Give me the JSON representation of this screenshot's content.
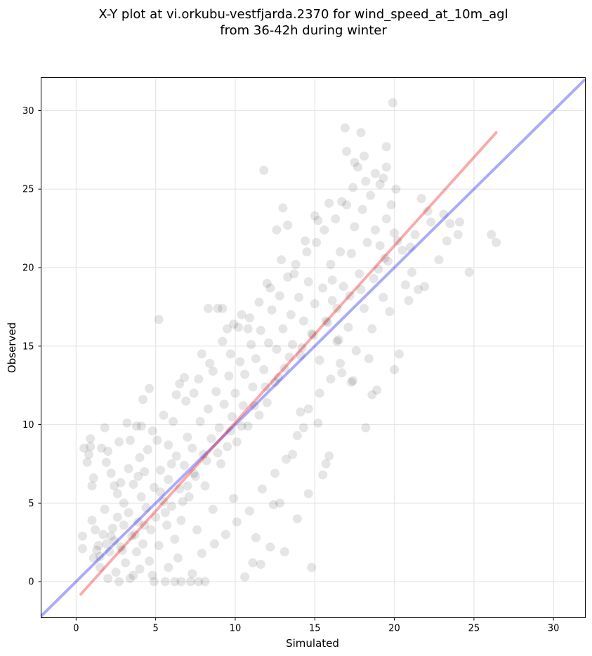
{
  "chart_data": {
    "type": "scatter",
    "title": "X-Y plot at vi.orkubu-vestfjarda.2370 for wind_speed_at_10m_agl",
    "subtitle": "from 36-42h during winter",
    "xlabel": "Simulated",
    "ylabel": "Observed",
    "xlim": [
      -2.2,
      32
    ],
    "ylim": [
      -2.3,
      32.1
    ],
    "x_ticks": [
      "0",
      "5",
      "10",
      "15",
      "20",
      "25",
      "30"
    ],
    "y_ticks": [
      "0",
      "5",
      "10",
      "15",
      "20",
      "25",
      "30"
    ],
    "grid": true,
    "point_color": "#000000",
    "identity_line": {
      "color": "#0000ee",
      "x": [
        -2.2,
        32
      ],
      "y": [
        -2.2,
        32
      ]
    },
    "fit_line": {
      "color": "#ee0000",
      "x": [
        0.3,
        26.4
      ],
      "y": [
        -0.8,
        28.6
      ]
    },
    "series": [
      {
        "points": [
          [
            0.4,
            2.9
          ],
          [
            0.4,
            2.1
          ],
          [
            0.5,
            8.5
          ],
          [
            0.7,
            7.6
          ],
          [
            0.8,
            8.1
          ],
          [
            0.9,
            8.6
          ],
          [
            0.9,
            9.1
          ],
          [
            1.0,
            6.1
          ],
          [
            1.1,
            6.6
          ],
          [
            1.0,
            3.9
          ],
          [
            1.2,
            3.3
          ],
          [
            1.3,
            2.0
          ],
          [
            1.5,
            1.6
          ],
          [
            1.6,
            8.5
          ],
          [
            1.8,
            9.8
          ],
          [
            1.9,
            7.6
          ],
          [
            2.0,
            8.3
          ],
          [
            2.2,
            6.9
          ],
          [
            2.4,
            6.1
          ],
          [
            2.5,
            0.6
          ],
          [
            2.7,
            8.9
          ],
          [
            2.8,
            6.3
          ],
          [
            3.0,
            5.0
          ],
          [
            3.2,
            10.1
          ],
          [
            3.4,
            9.0
          ],
          [
            3.6,
            6.2
          ],
          [
            3.8,
            9.9
          ],
          [
            3.9,
            6.7
          ],
          [
            4.1,
            9.9
          ],
          [
            4.2,
            11.6
          ],
          [
            4.3,
            7.0
          ],
          [
            4.5,
            8.4
          ],
          [
            4.6,
            12.3
          ],
          [
            4.8,
            9.6
          ],
          [
            4.9,
            0.0
          ],
          [
            5.2,
            16.7
          ],
          [
            5.3,
            5.7
          ],
          [
            5.5,
            10.6
          ],
          [
            5.6,
            0.0
          ],
          [
            5.8,
            8.7
          ],
          [
            6.0,
            7.5
          ],
          [
            6.2,
            0.0
          ],
          [
            6.3,
            11.9
          ],
          [
            6.5,
            12.6
          ],
          [
            6.6,
            0.0
          ],
          [
            6.8,
            13.0
          ],
          [
            7.0,
            6.1
          ],
          [
            7.2,
            0.0
          ],
          [
            7.4,
            12.0
          ],
          [
            7.7,
            0.0
          ],
          [
            7.9,
            14.5
          ],
          [
            8.1,
            0.0
          ],
          [
            8.3,
            17.4
          ],
          [
            8.6,
            13.4
          ],
          [
            8.9,
            17.4
          ],
          [
            9.2,
            17.4
          ],
          [
            9.5,
            16.1
          ],
          [
            9.7,
            14.5
          ],
          [
            9.9,
            5.3
          ],
          [
            10.2,
            16.2
          ],
          [
            10.4,
            17.0
          ],
          [
            10.6,
            0.3
          ],
          [
            10.9,
            16.8
          ],
          [
            11.1,
            1.2
          ],
          [
            11.3,
            2.8
          ],
          [
            11.6,
            1.1
          ],
          [
            11.8,
            26.2
          ],
          [
            12.0,
            19.0
          ],
          [
            12.2,
            2.2
          ],
          [
            12.4,
            4.9
          ],
          [
            12.6,
            22.4
          ],
          [
            12.8,
            5.0
          ],
          [
            13.0,
            23.8
          ],
          [
            13.1,
            1.9
          ],
          [
            13.3,
            22.7
          ],
          [
            13.6,
            8.1
          ],
          [
            13.9,
            4.0
          ],
          [
            14.1,
            10.8
          ],
          [
            14.3,
            9.8
          ],
          [
            14.6,
            5.6
          ],
          [
            14.8,
            0.9
          ],
          [
            15.0,
            23.3
          ],
          [
            15.2,
            10.1
          ],
          [
            15.5,
            6.8
          ],
          [
            15.7,
            7.5
          ],
          [
            15.9,
            8.0
          ],
          [
            16.1,
            19.2
          ],
          [
            16.4,
            15.3
          ],
          [
            16.6,
            13.9
          ],
          [
            16.9,
            28.9
          ],
          [
            17.0,
            27.4
          ],
          [
            17.3,
            12.7
          ],
          [
            17.5,
            26.7
          ],
          [
            17.7,
            26.4
          ],
          [
            17.9,
            28.6
          ],
          [
            18.1,
            27.1
          ],
          [
            18.2,
            9.8
          ],
          [
            18.4,
            14.2
          ],
          [
            18.6,
            11.9
          ],
          [
            18.9,
            12.2
          ],
          [
            19.1,
            21.4
          ],
          [
            19.3,
            25.7
          ],
          [
            19.5,
            27.7
          ],
          [
            19.7,
            17.2
          ],
          [
            19.9,
            30.5
          ],
          [
            20.0,
            13.5
          ],
          [
            20.1,
            25.0
          ],
          [
            20.3,
            14.5
          ],
          [
            20.5,
            21.1
          ],
          [
            20.7,
            18.9
          ],
          [
            20.9,
            17.9
          ],
          [
            21.1,
            19.7
          ],
          [
            21.3,
            22.1
          ],
          [
            21.5,
            18.6
          ],
          [
            21.7,
            24.4
          ],
          [
            21.9,
            18.8
          ],
          [
            22.1,
            23.6
          ],
          [
            22.3,
            22.9
          ],
          [
            22.8,
            20.5
          ],
          [
            23.1,
            23.4
          ],
          [
            23.3,
            21.7
          ],
          [
            23.5,
            22.8
          ],
          [
            24.1,
            22.9
          ],
          [
            24.0,
            22.1
          ],
          [
            24.7,
            19.7
          ],
          [
            26.1,
            22.1
          ],
          [
            26.4,
            21.6
          ],
          [
            1.1,
            1.5
          ],
          [
            1.4,
            2.3
          ],
          [
            1.7,
            3.0
          ],
          [
            1.9,
            2.4
          ],
          [
            2.1,
            1.9
          ],
          [
            2.3,
            3.4
          ],
          [
            2.4,
            2.6
          ],
          [
            2.6,
            4.1
          ],
          [
            2.8,
            2.2
          ],
          [
            3.0,
            3.6
          ],
          [
            3.1,
            1.2
          ],
          [
            3.3,
            4.4
          ],
          [
            3.5,
            2.9
          ],
          [
            3.6,
            0.4
          ],
          [
            3.8,
            1.9
          ],
          [
            3.9,
            3.8
          ],
          [
            4.1,
            5.4
          ],
          [
            4.2,
            2.4
          ],
          [
            4.4,
            4.7
          ],
          [
            4.6,
            1.3
          ],
          [
            4.7,
            3.3
          ],
          [
            4.9,
            6.0
          ],
          [
            5.0,
            4.1
          ],
          [
            5.2,
            2.3
          ],
          [
            5.3,
            7.1
          ],
          [
            5.5,
            5.1
          ],
          [
            5.7,
            3.6
          ],
          [
            5.8,
            6.5
          ],
          [
            6.0,
            4.8
          ],
          [
            6.2,
            2.7
          ],
          [
            6.3,
            8.0
          ],
          [
            6.5,
            5.9
          ],
          [
            6.6,
            3.9
          ],
          [
            6.8,
            7.4
          ],
          [
            7.0,
            9.2
          ],
          [
            7.1,
            5.4
          ],
          [
            7.3,
            8.5
          ],
          [
            7.5,
            6.7
          ],
          [
            7.6,
            3.3
          ],
          [
            7.8,
            10.2
          ],
          [
            8.0,
            8.1
          ],
          [
            8.1,
            6.1
          ],
          [
            8.3,
            11.0
          ],
          [
            8.5,
            9.1
          ],
          [
            8.6,
            4.6
          ],
          [
            8.8,
            12.1
          ],
          [
            9.0,
            9.8
          ],
          [
            9.1,
            7.5
          ],
          [
            9.3,
            11.3
          ],
          [
            9.5,
            8.6
          ],
          [
            9.6,
            13.1
          ],
          [
            9.8,
            10.5
          ],
          [
            10.0,
            12.0
          ],
          [
            10.1,
            8.9
          ],
          [
            10.3,
            14.0
          ],
          [
            10.5,
            11.2
          ],
          [
            10.6,
            13.2
          ],
          [
            10.8,
            9.9
          ],
          [
            11.0,
            15.1
          ],
          [
            11.1,
            12.4
          ],
          [
            11.3,
            14.2
          ],
          [
            11.5,
            10.6
          ],
          [
            11.6,
            16.0
          ],
          [
            11.8,
            13.5
          ],
          [
            12.0,
            11.4
          ],
          [
            12.1,
            15.2
          ],
          [
            12.3,
            17.3
          ],
          [
            12.5,
            12.7
          ],
          [
            12.6,
            14.8
          ],
          [
            12.8,
            18.2
          ],
          [
            13.0,
            16.1
          ],
          [
            13.1,
            13.6
          ],
          [
            13.3,
            19.4
          ],
          [
            13.5,
            17.0
          ],
          [
            13.6,
            15.1
          ],
          [
            13.8,
            20.2
          ],
          [
            14.0,
            18.1
          ],
          [
            14.1,
            14.4
          ],
          [
            14.3,
            16.6
          ],
          [
            14.5,
            21.0
          ],
          [
            14.6,
            19.1
          ],
          [
            14.8,
            15.8
          ],
          [
            15.0,
            17.7
          ],
          [
            15.1,
            21.6
          ],
          [
            15.3,
            14.1
          ],
          [
            15.5,
            18.7
          ],
          [
            15.6,
            22.4
          ],
          [
            15.8,
            16.5
          ],
          [
            16.0,
            20.2
          ],
          [
            16.1,
            17.9
          ],
          [
            16.3,
            23.1
          ],
          [
            16.5,
            15.4
          ],
          [
            16.6,
            21.0
          ],
          [
            16.8,
            18.8
          ],
          [
            17.0,
            24.0
          ],
          [
            17.1,
            16.2
          ],
          [
            17.3,
            20.9
          ],
          [
            17.5,
            22.6
          ],
          [
            17.6,
            14.7
          ],
          [
            17.8,
            19.6
          ],
          [
            18.0,
            23.7
          ],
          [
            18.1,
            17.4
          ],
          [
            18.3,
            21.6
          ],
          [
            18.5,
            24.6
          ],
          [
            18.6,
            16.1
          ],
          [
            18.8,
            22.4
          ],
          [
            19.0,
            19.9
          ],
          [
            19.1,
            25.3
          ],
          [
            19.3,
            18.1
          ],
          [
            19.5,
            23.1
          ],
          [
            19.6,
            20.4
          ],
          [
            19.8,
            24.0
          ],
          [
            20.0,
            22.2
          ],
          [
            1.5,
            0.9
          ],
          [
            2.0,
            0.2
          ],
          [
            2.7,
            0.0
          ],
          [
            3.4,
            0.2
          ],
          [
            4.0,
            0.8
          ],
          [
            4.8,
            0.4
          ],
          [
            5.8,
            0.9
          ],
          [
            6.4,
            1.5
          ],
          [
            7.3,
            0.5
          ],
          [
            7.9,
            1.8
          ],
          [
            8.7,
            2.4
          ],
          [
            9.4,
            3.0
          ],
          [
            10.1,
            3.8
          ],
          [
            10.9,
            4.5
          ],
          [
            11.7,
            5.9
          ],
          [
            12.5,
            6.9
          ],
          [
            13.2,
            7.8
          ],
          [
            13.9,
            9.3
          ],
          [
            14.6,
            11.0
          ],
          [
            15.3,
            12.0
          ],
          [
            16.0,
            12.9
          ],
          [
            16.7,
            13.3
          ],
          [
            17.4,
            12.8
          ],
          [
            1.8,
            4.6
          ],
          [
            2.6,
            5.6
          ],
          [
            3.3,
            7.2
          ],
          [
            4.0,
            7.9
          ],
          [
            5.1,
            9.0
          ],
          [
            6.1,
            10.2
          ],
          [
            6.9,
            11.5
          ],
          [
            7.7,
            12.9
          ],
          [
            8.4,
            13.9
          ],
          [
            9.2,
            15.3
          ],
          [
            9.9,
            16.4
          ],
          [
            10.8,
            16.1
          ],
          [
            11.5,
            17.8
          ],
          [
            12.2,
            18.7
          ],
          [
            12.9,
            20.5
          ],
          [
            13.7,
            19.6
          ],
          [
            14.4,
            21.7
          ],
          [
            15.2,
            23.0
          ],
          [
            15.9,
            24.1
          ],
          [
            16.7,
            24.2
          ],
          [
            17.4,
            25.1
          ],
          [
            18.2,
            25.5
          ],
          [
            18.8,
            26.0
          ],
          [
            19.5,
            26.4
          ],
          [
            2.2,
            2.9
          ],
          [
            2.9,
            2.0
          ],
          [
            3.7,
            3.0
          ],
          [
            4.3,
            3.6
          ],
          [
            5.6,
            4.4
          ],
          [
            6.7,
            5.1
          ],
          [
            7.4,
            6.9
          ],
          [
            8.2,
            7.7
          ],
          [
            8.9,
            8.2
          ],
          [
            9.7,
            9.6
          ],
          [
            10.4,
            9.9
          ],
          [
            11.2,
            11.2
          ],
          [
            11.9,
            12.4
          ],
          [
            12.7,
            13.0
          ],
          [
            13.4,
            14.3
          ],
          [
            14.2,
            14.9
          ],
          [
            14.9,
            15.7
          ],
          [
            15.7,
            16.6
          ],
          [
            16.4,
            17.4
          ],
          [
            17.2,
            18.2
          ],
          [
            17.9,
            18.6
          ],
          [
            18.7,
            19.3
          ],
          [
            19.4,
            20.6
          ],
          [
            20.2,
            21.7
          ],
          [
            21.0,
            21.3
          ]
        ]
      }
    ]
  }
}
